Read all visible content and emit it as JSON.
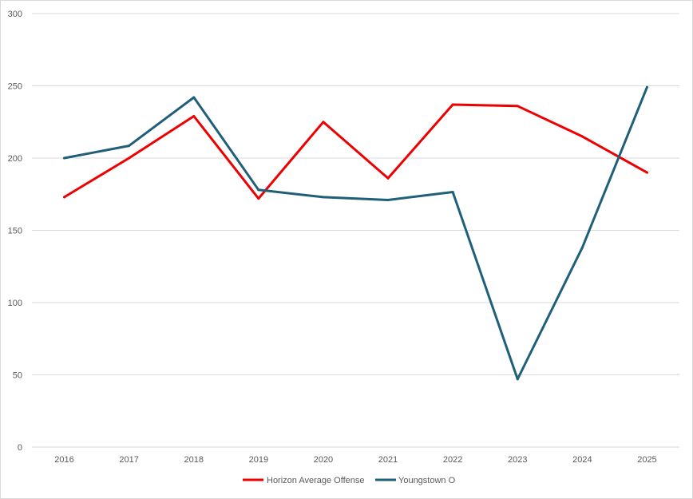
{
  "chart_data": {
    "type": "line",
    "title": "",
    "xlabel": "",
    "ylabel": "",
    "categories": [
      "2016",
      "2017",
      "2018",
      "2019",
      "2020",
      "2021",
      "2022",
      "2023",
      "2024",
      "2025"
    ],
    "ylim": [
      0,
      300
    ],
    "yticks": [
      "0",
      "50",
      "100",
      "150",
      "200",
      "250",
      "300"
    ],
    "grid": true,
    "legend_position": "bottom",
    "series": [
      {
        "name": "Horizon Average Offense",
        "color": "#ee0000",
        "values": [
          173,
          200,
          229,
          172,
          225,
          186,
          237,
          236,
          215,
          190
        ]
      },
      {
        "name": "Youngstown O",
        "color": "#1f5f7a",
        "values": [
          200,
          208.5,
          242,
          178,
          173,
          171,
          176.5,
          47,
          138,
          249
        ]
      }
    ]
  }
}
